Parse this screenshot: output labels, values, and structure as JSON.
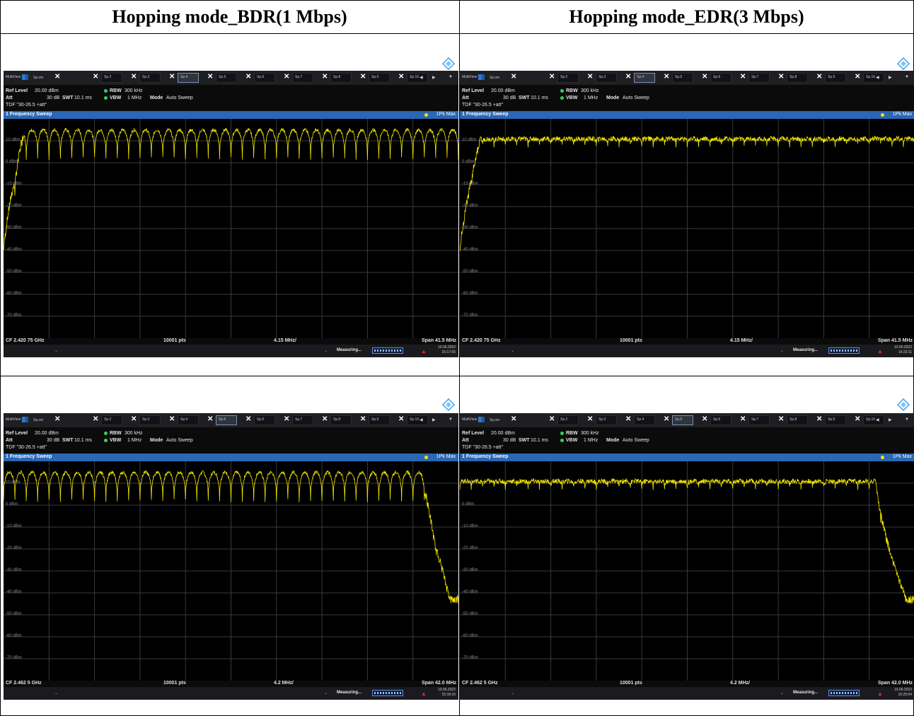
{
  "table": {
    "headers": [
      "Hopping mode_BDR(1 Mbps)",
      "Hopping mode_EDR(3 Mbps)"
    ]
  },
  "analyzer_common": {
    "multiview_label": "MultiView",
    "tabs": [
      "Sp.sm",
      "Sp.2",
      "Sp.3",
      "Sp.4",
      "Sp.5",
      "Sp.6",
      "Sp.7",
      "Sp.8",
      "Sp.9",
      "Sp.10"
    ],
    "ref_level_label": "Ref Level",
    "ref_level_value": "20.00 dBm",
    "att_label": "Att",
    "att_value": "30 dB",
    "swt_label": "SWT",
    "swt_value": "10.1 ms",
    "rbw_label": "RBW",
    "rbw_value": "300 kHz",
    "vbw_label": "VBW",
    "vbw_value": "1 MHz",
    "mode_label": "Mode",
    "mode_value": "Auto Sweep",
    "tdf_text": "TDF \"30-26.5 +att\"",
    "window_title": "1 Frequency Sweep",
    "trace_label": "1Pk Max",
    "points": "10001 pts",
    "status_text": "Measuring...",
    "date": "10.06.2022",
    "y_labels": [
      "10 dBm",
      "0 dBm",
      "-10 dBm",
      "-20 dBm",
      "-30 dBm",
      "-40 dBm",
      "-50 dBm",
      "-60 dBm",
      "-70 dBm"
    ],
    "colors": {
      "trace": "#f2e600",
      "titlebar": "#2a67b4",
      "grid": "#3a3a3a"
    }
  },
  "screens": [
    {
      "id": "bdr-low",
      "active_tab": 3,
      "mode": "bdr",
      "edge": "left",
      "cf": "CF 2.420 75 GHz",
      "div": "4.15 MHz/",
      "span": "Span 41.5 MHz",
      "time": "15:17:55"
    },
    {
      "id": "edr-low",
      "active_tab": 3,
      "mode": "edr",
      "edge": "left",
      "cf": "CF 2.420 75 GHz",
      "div": "4.15 MHz/",
      "span": "Span 41.5 MHz",
      "time": "15:23:11"
    },
    {
      "id": "bdr-high",
      "active_tab": 4,
      "mode": "bdr",
      "edge": "right",
      "cf": "CF 2.462 5 GHz",
      "div": "4.2 MHz/",
      "span": "Span 42.0 MHz",
      "time": "15:18:16"
    },
    {
      "id": "edr-high",
      "active_tab": 4,
      "mode": "edr",
      "edge": "right",
      "cf": "CF 2.462 5 GHz",
      "div": "4.2 MHz/",
      "span": "Span 42.0 MHz",
      "time": "15:25:04"
    }
  ]
}
